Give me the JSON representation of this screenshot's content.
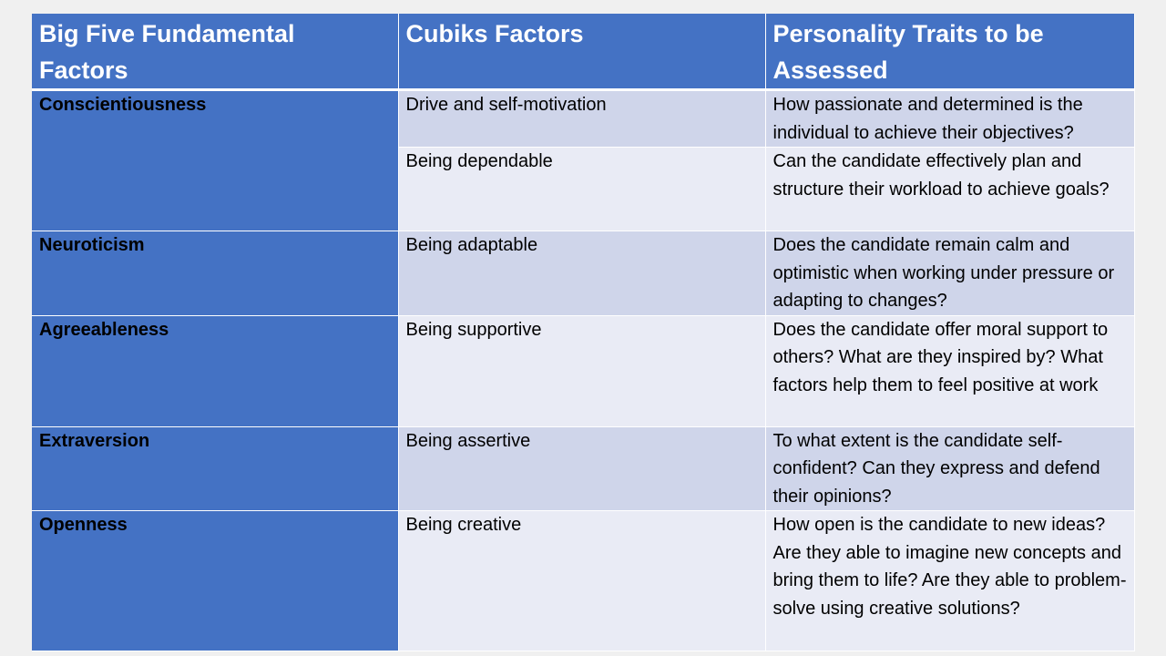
{
  "table": {
    "headers": [
      "Big Five Fundamental Factors",
      "Cubiks Factors",
      "Personality Traits to be Assessed"
    ],
    "rows": [
      {
        "factor": "Conscientiousness",
        "cubiks": "Drive and self-motivation",
        "trait": "How passionate and determined is the individual to achieve their objectives?"
      },
      {
        "factor": "",
        "cubiks": "Being dependable",
        "trait": "Can the candidate effectively plan and structure their workload to achieve goals?"
      },
      {
        "factor": "Neuroticism",
        "cubiks": "Being adaptable",
        "trait": "Does the candidate remain calm and optimistic when working under pressure or adapting to changes?"
      },
      {
        "factor": "Agreeableness",
        "cubiks": "Being supportive",
        "trait": "Does the candidate offer moral support to others? What are they inspired by? What factors help them to feel positive at work"
      },
      {
        "factor": "Extraversion",
        "cubiks": "Being assertive",
        "trait": "To what extent is the candidate self-confident? Can they express and defend their opinions?"
      },
      {
        "factor": "Openness",
        "cubiks": "Being creative",
        "trait": "How open is the candidate to new ideas? Are they able to imagine new concepts and bring them to life? Are they able to problem-solve using creative solutions?"
      }
    ]
  },
  "colors": {
    "header_bg": "#4472c4",
    "band_dark": "#cfd5ea",
    "band_light": "#e9ebf5",
    "page_bg": "#f0f0f0"
  }
}
